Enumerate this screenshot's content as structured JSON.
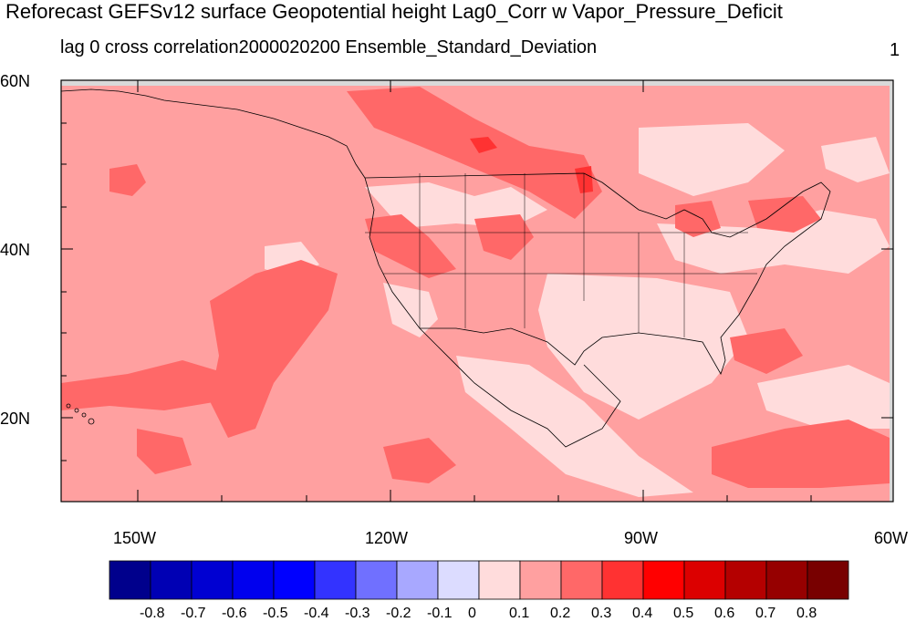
{
  "title": "Reforecast GEFSv12 surface Geopotential height Lag0_Corr w Vapor_Pressure_Deficit",
  "subtitle_left": "lag 0 cross correlation2000020200 Ensemble_Standard_Deviation",
  "subtitle_right": "1",
  "axes": {
    "y_labels": [
      "60N",
      "40N",
      "20N"
    ],
    "x_labels": [
      "150W",
      "120W",
      "90W",
      "60W"
    ]
  },
  "colorbar": {
    "labels": [
      "-0.8",
      "-0.7",
      "-0.6",
      "-0.5",
      "-0.4",
      "-0.3",
      "-0.2",
      "-0.1",
      "0",
      "0.1",
      "0.2",
      "0.3",
      "0.4",
      "0.5",
      "0.6",
      "0.7",
      "0.8"
    ],
    "colors": [
      "#00008c",
      "#0000b4",
      "#0000d2",
      "#0000ee",
      "#0000ff",
      "#3333ff",
      "#7070ff",
      "#a8a8ff",
      "#dcdcff",
      "#ffdcdc",
      "#ffa0a0",
      "#ff6868",
      "#ff3232",
      "#ff0000",
      "#dc0000",
      "#b40000",
      "#960000",
      "#780000"
    ]
  },
  "map_colors": {
    "c0_1": "#ffdcdc",
    "c1_2": "#ffa0a0",
    "c2_3": "#ff6868",
    "c3_4": "#ff3232",
    "land_line": "#000000",
    "missing": "#d9d9d9"
  }
}
